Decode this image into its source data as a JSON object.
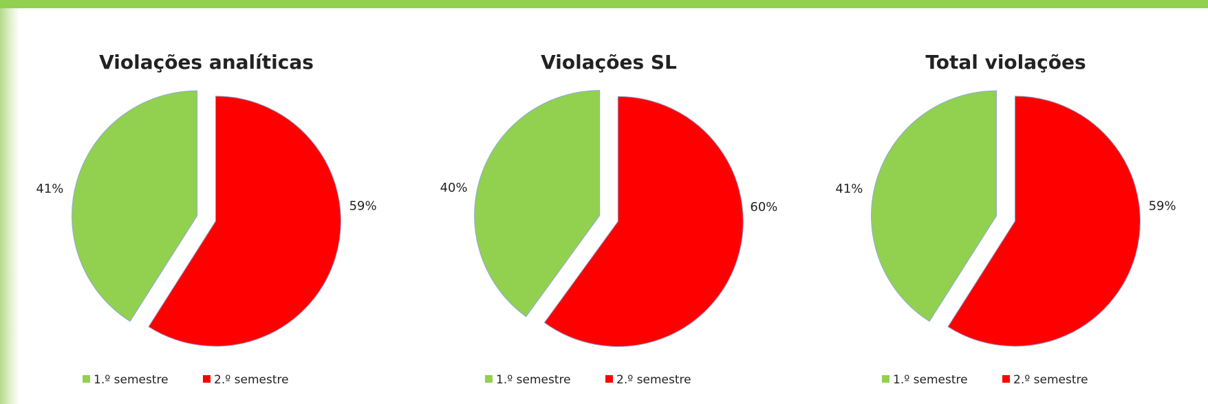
{
  "chart_data": [
    {
      "type": "pie",
      "title": "Violações analíticas",
      "categories": [
        "1.º semestre",
        "2.º semestre"
      ],
      "values": [
        41,
        59
      ],
      "value_labels": [
        "41%",
        "59%"
      ],
      "colors": [
        "#92d050",
        "#ff0000"
      ]
    },
    {
      "type": "pie",
      "title": "Violações SL",
      "categories": [
        "1.º semestre",
        "2.º semestre"
      ],
      "values": [
        40,
        60
      ],
      "value_labels": [
        "40%",
        "60%"
      ],
      "colors": [
        "#92d050",
        "#ff0000"
      ]
    },
    {
      "type": "pie",
      "title": "Total violações",
      "categories": [
        "1.º semestre",
        "2.º semestre"
      ],
      "values": [
        41,
        59
      ],
      "value_labels": [
        "41%",
        "59%"
      ],
      "colors": [
        "#92d050",
        "#ff0000"
      ]
    }
  ]
}
